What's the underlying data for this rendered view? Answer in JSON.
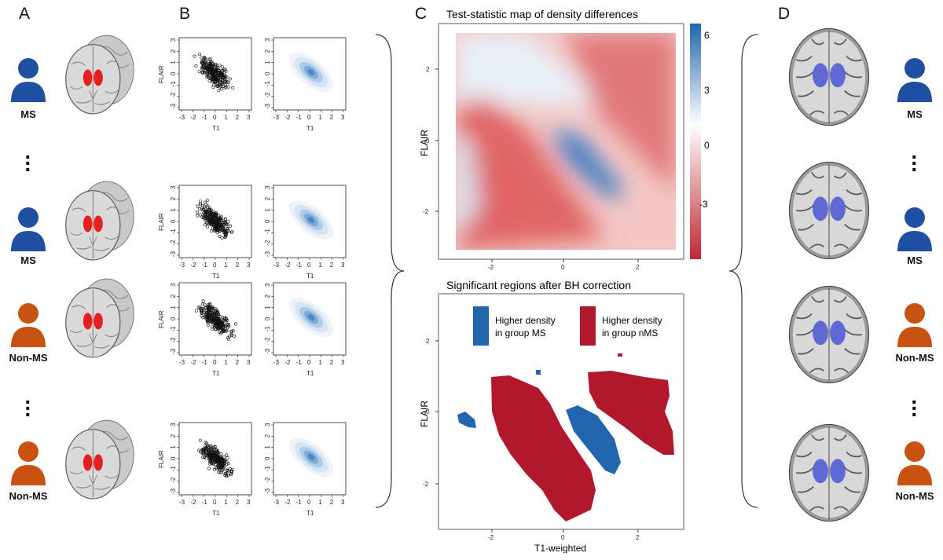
{
  "panels": {
    "a": "A",
    "b": "B",
    "c": "C",
    "d": "D"
  },
  "colors": {
    "ms": "#1f4fa0",
    "nms": "#c8520f",
    "blue_region": "#2166ac",
    "red_region": "#b2182b"
  },
  "groups_a": [
    {
      "label": "MS",
      "color": "ms"
    },
    {
      "label": "MS",
      "color": "ms"
    },
    {
      "label": "Non-MS",
      "color": "nms"
    },
    {
      "label": "Non-MS",
      "color": "nms"
    }
  ],
  "groups_d": [
    {
      "label": "MS",
      "color": "ms"
    },
    {
      "label": "MS",
      "color": "ms"
    },
    {
      "label": "Non-MS",
      "color": "nms"
    },
    {
      "label": "Non-MS",
      "color": "nms"
    }
  ],
  "scatter": {
    "xlabel": "T1",
    "ylabel": "FLAIR",
    "ticks": [
      "-3",
      "-2",
      "-1",
      "0",
      "1",
      "2",
      "3"
    ]
  },
  "chart_data": [
    {
      "type": "heatmap",
      "title": "Test-statistic map of density differences",
      "xlabel": "",
      "ylabel": "FLAIR",
      "xticks": [
        "-2",
        "0",
        "2"
      ],
      "yticks": [
        "2",
        "0",
        "-2"
      ],
      "colorbar": {
        "ticks": [
          "6",
          "3",
          "0",
          "-3"
        ],
        "range": [
          -5,
          6.5
        ]
      }
    },
    {
      "type": "heatmap",
      "title": "Significant regions after BH correction",
      "xlabel": "T1-weighted",
      "ylabel": "FLAIR",
      "xticks": [
        "-2",
        "0",
        "2"
      ],
      "yticks": [
        "2",
        "0",
        "-2"
      ],
      "legend": [
        {
          "label_line1": "Higher density",
          "label_line2": "in group MS",
          "color": "blue"
        },
        {
          "label_line1": "Higher density",
          "label_line2": "in group nMS",
          "color": "red"
        }
      ]
    }
  ]
}
